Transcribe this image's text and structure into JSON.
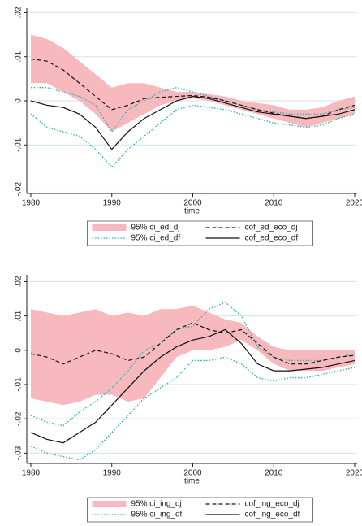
{
  "chart_data": [
    {
      "type": "line",
      "x": [
        1980,
        1982,
        1984,
        1986,
        1988,
        1990,
        1992,
        1994,
        1996,
        1998,
        2000,
        2002,
        2004,
        2006,
        2008,
        2010,
        2012,
        2014,
        2016,
        2018,
        2020
      ],
      "xlim": [
        1979.5,
        2020.3
      ],
      "xticks": [
        1980,
        1990,
        2000,
        2010,
        2020
      ],
      "xlabel": "time",
      "ylim": [
        -0.021,
        0.021
      ],
      "yticks": [
        {
          "value": 0.02,
          "label": ".02"
        },
        {
          "value": 0.01,
          "label": ".01"
        },
        0,
        {
          "value": -0.01,
          "label": "-.01"
        },
        {
          "value": -0.02,
          "label": "-.02"
        }
      ],
      "grid": true,
      "series": [
        {
          "name": "95% ci_ed_dj",
          "style": "band",
          "color": "#f7b9bd",
          "high": [
            0.015,
            0.014,
            0.012,
            0.009,
            0.006,
            0.003,
            0.004,
            0.004,
            0.003,
            0.002,
            0.002,
            0.0015,
            0.001,
            0,
            -0.0005,
            -0.001,
            -0.002,
            -0.002,
            -0.0015,
            0,
            0.001
          ],
          "low": [
            0.004,
            0.004,
            0.002,
            0,
            -0.003,
            -0.007,
            -0.005,
            -0.003,
            -0.001,
            0,
            0.0005,
            0,
            -0.001,
            -0.002,
            -0.003,
            -0.004,
            -0.005,
            -0.006,
            -0.005,
            -0.004,
            -0.003
          ]
        },
        {
          "name": "95% ci_ed_df",
          "style": "dotted",
          "color": "#2bb3a8",
          "high": [
            0.003,
            0.003,
            0.002,
            0.001,
            -0.001,
            -0.007,
            -0.002,
            0,
            0.002,
            0.003,
            0.002,
            0.001,
            0,
            -0.001,
            -0.002,
            -0.0025,
            -0.003,
            -0.003,
            -0.003,
            -0.002,
            -0.0015
          ],
          "low": [
            -0.003,
            -0.006,
            -0.007,
            -0.008,
            -0.011,
            -0.015,
            -0.011,
            -0.008,
            -0.005,
            -0.002,
            -0.001,
            -0.0015,
            -0.002,
            -0.003,
            -0.004,
            -0.005,
            -0.0055,
            -0.006,
            -0.0055,
            -0.004,
            -0.003
          ]
        },
        {
          "name": "cof_ed_eco_dj",
          "style": "dashed",
          "color": "#111111",
          "values": [
            0.0095,
            0.009,
            0.007,
            0.004,
            0.001,
            -0.002,
            -0.001,
            0.0005,
            0.0008,
            0.001,
            0.0012,
            0.0008,
            0,
            -0.001,
            -0.002,
            -0.0028,
            -0.0035,
            -0.004,
            -0.0035,
            -0.002,
            -0.001
          ]
        },
        {
          "name": "cof_ed_eco_df",
          "style": "solid",
          "color": "#111111",
          "values": [
            0,
            -0.001,
            -0.0015,
            -0.003,
            -0.006,
            -0.011,
            -0.007,
            -0.004,
            -0.002,
            0,
            0.001,
            0.0005,
            -0.0005,
            -0.0015,
            -0.0025,
            -0.003,
            -0.0035,
            -0.004,
            -0.0035,
            -0.003,
            -0.002
          ]
        }
      ]
    },
    {
      "type": "line",
      "x": [
        1980,
        1982,
        1984,
        1986,
        1988,
        1990,
        1992,
        1994,
        1996,
        1998,
        2000,
        2002,
        2004,
        2006,
        2008,
        2010,
        2012,
        2014,
        2016,
        2018,
        2020
      ],
      "xlim": [
        1979.5,
        2020.3
      ],
      "xticks": [
        1980,
        1990,
        2000,
        2010,
        2020
      ],
      "xlabel": "time",
      "ylim": [
        -0.033,
        0.022
      ],
      "yticks": [
        {
          "value": 0.02,
          "label": ".02"
        },
        {
          "value": 0.01,
          "label": ".01"
        },
        0,
        {
          "value": -0.01,
          "label": "-.01"
        },
        {
          "value": -0.02,
          "label": "-.02"
        },
        {
          "value": -0.03,
          "label": "-.03"
        }
      ],
      "grid": true,
      "series": [
        {
          "name": "95% ci_ing_dj",
          "style": "band",
          "color": "#f7b9bd",
          "high": [
            0.012,
            0.011,
            0.01,
            0.011,
            0.012,
            0.01,
            0.011,
            0.01,
            0.012,
            0.012,
            0.013,
            0.011,
            0.009,
            0.008,
            0.004,
            0.001,
            0,
            0,
            0,
            0,
            0
          ],
          "low": [
            -0.014,
            -0.015,
            -0.016,
            -0.015,
            -0.013,
            -0.013,
            -0.015,
            -0.014,
            -0.008,
            -0.002,
            0,
            0,
            0.001,
            0.003,
            0,
            -0.004,
            -0.006,
            -0.006,
            -0.006,
            -0.005,
            -0.004
          ]
        },
        {
          "name": "95% ci_ing_df",
          "style": "dotted",
          "color": "#2bb3a8",
          "high": [
            -0.019,
            -0.021,
            -0.022,
            -0.018,
            -0.015,
            -0.011,
            -0.006,
            0,
            0.002,
            0.006,
            0.007,
            0.012,
            0.014,
            0.01,
            0.001,
            -0.002,
            -0.003,
            -0.003,
            -0.003,
            -0.002,
            -0.001
          ],
          "low": [
            -0.028,
            -0.03,
            -0.031,
            -0.032,
            -0.029,
            -0.024,
            -0.019,
            -0.014,
            -0.011,
            -0.008,
            -0.003,
            -0.003,
            -0.002,
            -0.004,
            -0.008,
            -0.009,
            -0.008,
            -0.008,
            -0.007,
            -0.006,
            -0.005
          ]
        },
        {
          "name": "cof_ing_eco_dj",
          "style": "dashed",
          "color": "#111111",
          "values": [
            -0.001,
            -0.002,
            -0.004,
            -0.002,
            0,
            -0.001,
            -0.003,
            -0.002,
            0.002,
            0.006,
            0.008,
            0.006,
            0.005,
            0.006,
            0.002,
            -0.002,
            -0.004,
            -0.004,
            -0.003,
            -0.002,
            -0.0015
          ]
        },
        {
          "name": "cof_ing_eco_df",
          "style": "solid",
          "color": "#111111",
          "values": [
            -0.024,
            -0.026,
            -0.027,
            -0.024,
            -0.021,
            -0.016,
            -0.011,
            -0.006,
            -0.002,
            0.001,
            0.003,
            0.004,
            0.006,
            0.002,
            -0.004,
            -0.006,
            -0.006,
            -0.0055,
            -0.005,
            -0.004,
            -0.003
          ]
        }
      ]
    }
  ]
}
